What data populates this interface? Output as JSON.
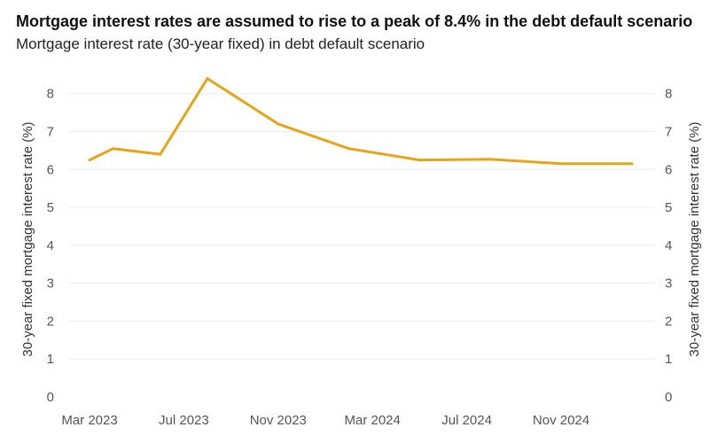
{
  "chart_data": {
    "type": "line",
    "title": "Mortgage interest rates are assumed to rise to a peak of 8.4% in the debt default scenario",
    "subtitle": "Mortgage interest rate (30-year fixed) in debt default scenario",
    "ylabel": "30-year fixed mortgage interest rate (%)",
    "ylabel_right": "30-year fixed mortgage interest rate (%)",
    "xlabel": "",
    "ylim": [
      0,
      8.6
    ],
    "yticks": [
      "0",
      "1",
      "2",
      "3",
      "4",
      "5",
      "6",
      "7",
      "8"
    ],
    "xticks": [
      "Mar 2023",
      "Jul 2023",
      "Nov 2023",
      "Mar 2024",
      "Jul 2024",
      "Nov 2024"
    ],
    "line_color": "#E8A317",
    "grid": true,
    "series": [
      {
        "name": "Mortgage interest rate (30-year fixed)",
        "x": [
          0,
          1,
          3,
          5,
          8,
          11,
          14,
          17,
          20,
          23
        ],
        "values": [
          6.25,
          6.55,
          6.4,
          8.4,
          7.2,
          6.55,
          6.25,
          6.27,
          6.15,
          6.15
        ]
      }
    ]
  }
}
